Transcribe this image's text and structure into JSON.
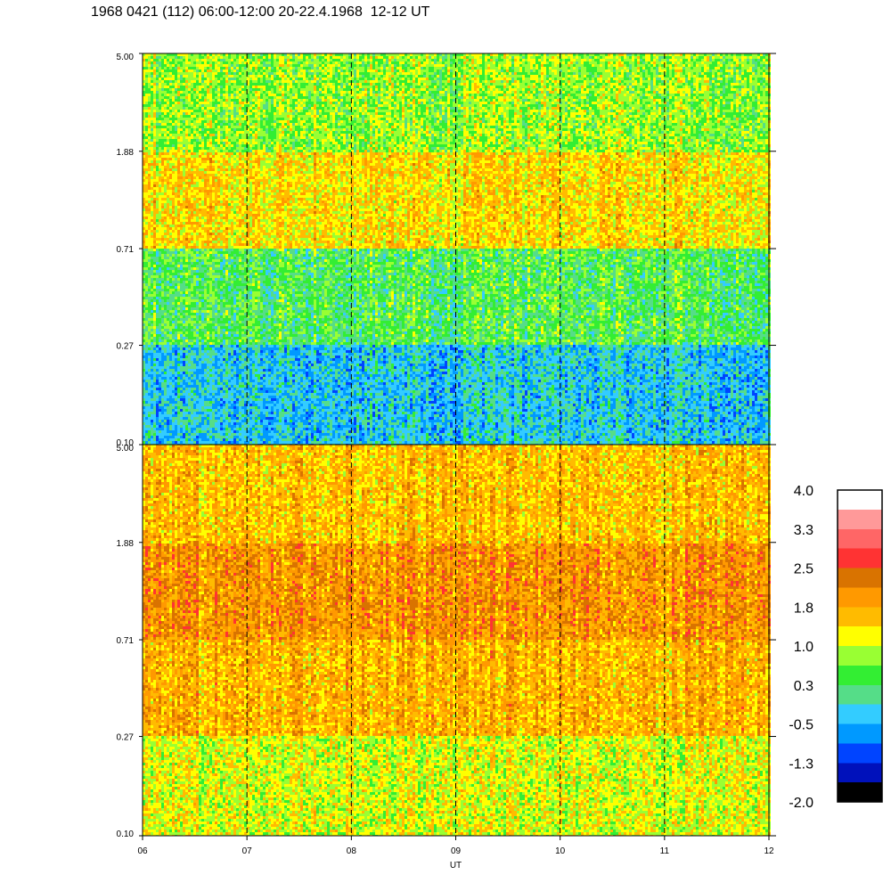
{
  "chart_data": {
    "type": "heatmap",
    "title": "1968 0421 (112) 06:00-12:00 20-22.4.1968  12-12 UT",
    "xlabel": "UT",
    "x_ticks": [
      "06",
      "07",
      "08",
      "09",
      "10",
      "11",
      "12"
    ],
    "xlim": [
      6,
      12
    ],
    "y_scale": "log",
    "ylim": [
      0.1,
      5.0
    ],
    "panels": [
      {
        "name": "upper",
        "y_ticks": [
          "5.00",
          "1.88",
          "0.71",
          "0.27",
          "0.10"
        ],
        "dominant_levels_by_height": [
          {
            "y_range": [
              1.88,
              5.0
            ],
            "typical_value": 0.8
          },
          {
            "y_range": [
              0.71,
              1.88
            ],
            "typical_value": 1.4
          },
          {
            "y_range": [
              0.27,
              0.71
            ],
            "typical_value": 0.4
          },
          {
            "y_range": [
              0.1,
              0.27
            ],
            "typical_value": -0.3
          }
        ]
      },
      {
        "name": "lower",
        "y_ticks": [
          "5.00",
          "1.88",
          "0.71",
          "0.27",
          "0.10"
        ],
        "dominant_levels_by_height": [
          {
            "y_range": [
              1.88,
              5.0
            ],
            "typical_value": 1.6
          },
          {
            "y_range": [
              0.71,
              1.88
            ],
            "typical_value": 2.0
          },
          {
            "y_range": [
              0.27,
              0.71
            ],
            "typical_value": 1.7
          },
          {
            "y_range": [
              0.1,
              0.27
            ],
            "typical_value": 1.1
          }
        ]
      }
    ],
    "vertical_dashed_lines_at": [
      7,
      8,
      9,
      10,
      11
    ],
    "colorbar": {
      "labels": [
        "4.0",
        "3.3",
        "2.5",
        "1.8",
        "1.0",
        "0.3",
        "-0.5",
        "-1.3",
        "-2.0"
      ],
      "colors": [
        "#ffffff",
        "#ff9999",
        "#ff6666",
        "#ff3333",
        "#d97300",
        "#ff9900",
        "#ffbb00",
        "#ffff00",
        "#99ff33",
        "#33ee33",
        "#55dd88",
        "#33ccff",
        "#0099ff",
        "#0044ff",
        "#0011bb",
        "#000000"
      ]
    }
  }
}
